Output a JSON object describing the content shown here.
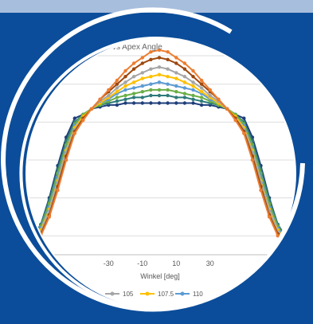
{
  "chart_data": {
    "type": "line",
    "title": "LVK vs Apex Angle",
    "xlabel": "Winkel [deg]",
    "ylabel": "",
    "xlim": [
      -80,
      80
    ],
    "ylim": [
      0,
      1.05
    ],
    "grid": true,
    "x_ticks": [
      "-30",
      "-10",
      "10",
      "30"
    ],
    "legend_position": "bottom",
    "x": [
      -80,
      -75,
      -70,
      -65,
      -60,
      -55,
      -50,
      -45,
      -40,
      -35,
      -30,
      -25,
      -20,
      -15,
      -10,
      -5,
      0,
      5,
      10,
      15,
      20,
      25,
      30,
      35,
      40,
      45,
      50,
      55,
      60,
      65,
      70,
      75,
      80
    ],
    "series": [
      {
        "name": "",
        "color": "#1f3f7a",
        "values": [
          0.05,
          0.09,
          0.16,
          0.3,
          0.47,
          0.62,
          0.72,
          0.74,
          0.77,
          0.78,
          0.79,
          0.79,
          0.8,
          0.8,
          0.8,
          0.8,
          0.8,
          0.8,
          0.8,
          0.8,
          0.8,
          0.79,
          0.79,
          0.78,
          0.77,
          0.74,
          0.72,
          0.62,
          0.47,
          0.3,
          0.16,
          0.09,
          0.05
        ]
      },
      {
        "name": "",
        "color": "#2e7a7a",
        "values": [
          0.05,
          0.09,
          0.16,
          0.29,
          0.45,
          0.6,
          0.7,
          0.74,
          0.77,
          0.79,
          0.8,
          0.81,
          0.82,
          0.83,
          0.83,
          0.84,
          0.84,
          0.84,
          0.83,
          0.83,
          0.82,
          0.81,
          0.8,
          0.79,
          0.77,
          0.74,
          0.7,
          0.6,
          0.45,
          0.29,
          0.16,
          0.09,
          0.05
        ]
      },
      {
        "name": "",
        "color": "#6aae45",
        "values": [
          0.05,
          0.08,
          0.15,
          0.27,
          0.43,
          0.58,
          0.69,
          0.74,
          0.77,
          0.79,
          0.81,
          0.83,
          0.84,
          0.85,
          0.86,
          0.87,
          0.87,
          0.87,
          0.86,
          0.85,
          0.84,
          0.83,
          0.81,
          0.79,
          0.77,
          0.74,
          0.69,
          0.58,
          0.43,
          0.27,
          0.15,
          0.08,
          0.05
        ]
      },
      {
        "name": "110",
        "color": "#5b9bd5",
        "values": [
          0.04,
          0.08,
          0.14,
          0.25,
          0.41,
          0.56,
          0.68,
          0.73,
          0.77,
          0.8,
          0.82,
          0.85,
          0.87,
          0.88,
          0.89,
          0.9,
          0.91,
          0.9,
          0.89,
          0.88,
          0.87,
          0.85,
          0.82,
          0.8,
          0.77,
          0.73,
          0.68,
          0.56,
          0.41,
          0.25,
          0.14,
          0.08,
          0.04
        ]
      },
      {
        "name": "107.5",
        "color": "#ffc000",
        "values": [
          0.04,
          0.07,
          0.13,
          0.24,
          0.39,
          0.55,
          0.67,
          0.73,
          0.77,
          0.8,
          0.83,
          0.86,
          0.89,
          0.91,
          0.93,
          0.94,
          0.95,
          0.94,
          0.93,
          0.91,
          0.89,
          0.86,
          0.83,
          0.8,
          0.77,
          0.73,
          0.67,
          0.55,
          0.39,
          0.24,
          0.13,
          0.07,
          0.04
        ]
      },
      {
        "name": "105",
        "color": "#a5a5a5",
        "values": [
          0.04,
          0.07,
          0.12,
          0.23,
          0.38,
          0.54,
          0.66,
          0.72,
          0.77,
          0.81,
          0.84,
          0.88,
          0.91,
          0.94,
          0.96,
          0.98,
          0.99,
          0.98,
          0.96,
          0.94,
          0.91,
          0.88,
          0.84,
          0.81,
          0.77,
          0.72,
          0.66,
          0.54,
          0.38,
          0.23,
          0.12,
          0.07,
          0.04
        ]
      },
      {
        "name": "",
        "color": "#9e480e",
        "values": [
          0.03,
          0.06,
          0.11,
          0.21,
          0.36,
          0.52,
          0.65,
          0.72,
          0.77,
          0.82,
          0.86,
          0.9,
          0.94,
          0.98,
          1.01,
          1.03,
          1.04,
          1.03,
          1.01,
          0.98,
          0.94,
          0.9,
          0.86,
          0.82,
          0.77,
          0.72,
          0.65,
          0.52,
          0.36,
          0.21,
          0.11,
          0.06,
          0.03
        ]
      },
      {
        "name": "",
        "color": "#ed7d31",
        "values": [
          0.03,
          0.06,
          0.1,
          0.2,
          0.34,
          0.5,
          0.64,
          0.71,
          0.77,
          0.82,
          0.87,
          0.92,
          0.97,
          1.01,
          1.04,
          1.07,
          1.08,
          1.07,
          1.04,
          1.01,
          0.97,
          0.92,
          0.87,
          0.82,
          0.77,
          0.71,
          0.64,
          0.5,
          0.34,
          0.2,
          0.1,
          0.06,
          0.03
        ]
      }
    ]
  }
}
